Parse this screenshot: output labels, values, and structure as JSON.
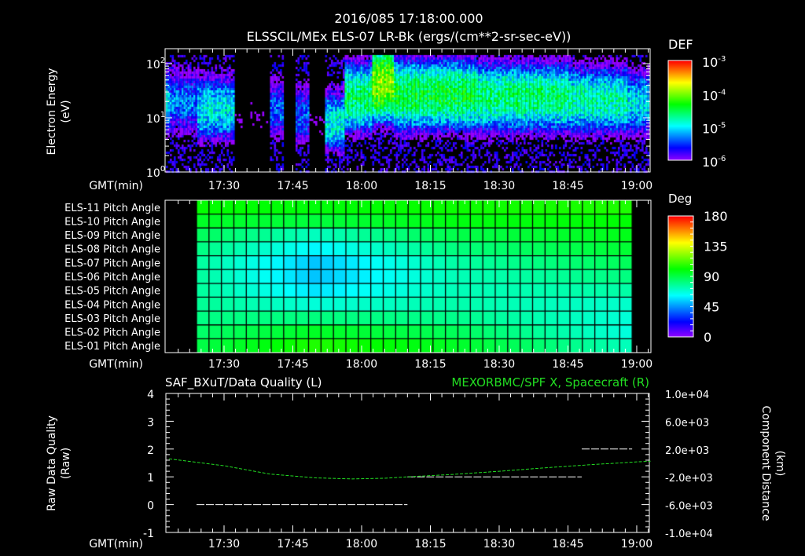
{
  "header": {
    "timestamp": "2016/085 17:18:00.000",
    "title": "ELSSCIL/MEx ELS-07 LR-Bk  (ergs/(cm**2-sr-sec-eV))"
  },
  "time_axis": {
    "label": "GMT(min)",
    "range_min": [
      78,
      123
    ],
    "ticks": [
      {
        "min": 90,
        "label": "17:30"
      },
      {
        "min": 105,
        "label": "17:45"
      },
      {
        "min": 120,
        "label": "18:00"
      },
      {
        "min": 135,
        "label": "18:15"
      },
      {
        "min": 150,
        "label": "18:30"
      },
      {
        "min": 165,
        "label": "18:45"
      },
      {
        "min": 180,
        "label": "19:00"
      }
    ]
  },
  "chart_data": [
    {
      "type": "heatmap",
      "name": "energy-spectrogram",
      "ylabel": "Electron Energy",
      "yunit": "(eV)",
      "yscale": "log",
      "ylim": [
        1,
        186
      ],
      "yticks": [
        {
          "exp": 0,
          "label": "10",
          "sup": "0"
        },
        {
          "exp": 1,
          "label": "10",
          "sup": "1"
        },
        {
          "exp": 2,
          "label": "10",
          "sup": "2"
        }
      ],
      "xlim_min": [
        78,
        183
      ],
      "colorbar": {
        "title": "DEF",
        "log_range": [
          -6,
          -3
        ],
        "ticks": [
          {
            "exp": -3,
            "label": "10",
            "sup": "-3"
          },
          {
            "exp": -4,
            "label": "10",
            "sup": "-4"
          },
          {
            "exp": -5,
            "label": "10",
            "sup": "-5"
          },
          {
            "exp": -6,
            "label": "10",
            "sup": "-6"
          }
        ]
      },
      "segments": [
        {
          "start": 78,
          "end": 84,
          "peak_eV": 20,
          "log_level": -5.3
        },
        {
          "start": 84,
          "end": 92,
          "peak_eV": 15,
          "log_level": -4.95
        },
        {
          "start": 92,
          "end": 100,
          "peak_eV": 10,
          "log_level": -6.6
        },
        {
          "start": 100,
          "end": 103,
          "peak_eV": 15,
          "log_level": -5.4
        },
        {
          "start": 103,
          "end": 105.5,
          "peak_eV": 10,
          "log_level": -6.8
        },
        {
          "start": 105.5,
          "end": 108.5,
          "peak_eV": 12,
          "log_level": -5.4
        },
        {
          "start": 108.5,
          "end": 112,
          "peak_eV": 10,
          "log_level": -6.6
        },
        {
          "start": 112,
          "end": 116,
          "peak_eV": 8,
          "log_level": -4.9
        },
        {
          "start": 116,
          "end": 122,
          "peak_eV": 25,
          "log_level": -4.55
        },
        {
          "start": 122,
          "end": 127,
          "peak_eV": 45,
          "log_level": -3.95
        },
        {
          "start": 127,
          "end": 145,
          "peak_eV": 28,
          "log_level": -4.45
        },
        {
          "start": 145,
          "end": 165,
          "peak_eV": 25,
          "log_level": -4.6
        },
        {
          "start": 165,
          "end": 178,
          "peak_eV": 22,
          "log_level": -4.75
        },
        {
          "start": 178,
          "end": 183,
          "peak_eV": 20,
          "log_level": -5.0
        }
      ]
    },
    {
      "type": "heatmap",
      "name": "pitch-angle-grid",
      "rows": [
        "ELS-11 Pitch Angle",
        "ELS-10 Pitch Angle",
        "ELS-09 Pitch Angle",
        "ELS-08 Pitch Angle",
        "ELS-07 Pitch Angle",
        "ELS-06 Pitch Angle",
        "ELS-05 Pitch Angle",
        "ELS-04 Pitch Angle",
        "ELS-03 Pitch Angle",
        "ELS-02 Pitch Angle",
        "ELS-01 Pitch Angle"
      ],
      "data_range_min": [
        84,
        179
      ],
      "n_columns": 35,
      "keyframes_min": [
        84,
        110,
        140,
        179
      ],
      "angles_deg": [
        [
          102,
          100,
          103,
          106
        ],
        [
          96,
          92,
          99,
          101
        ],
        [
          88,
          72,
          90,
          98
        ],
        [
          82,
          61,
          82,
          94
        ],
        [
          78,
          53,
          76,
          88
        ],
        [
          78,
          53,
          73,
          82
        ],
        [
          78,
          58,
          73,
          76
        ],
        [
          79,
          68,
          75,
          70
        ],
        [
          81,
          82,
          80,
          68
        ],
        [
          85,
          96,
          88,
          67
        ],
        [
          90,
          106,
          96,
          72
        ]
      ],
      "colorbar": {
        "title": "Deg",
        "range": [
          0,
          180
        ],
        "ticks": [
          "180",
          "135",
          "90",
          "45",
          "0"
        ]
      }
    },
    {
      "type": "line",
      "name": "quality-and-position",
      "left_title": "SAF_BXuT/Data Quality (L)",
      "right_title": "MEXORBMC/SPF X, Spacecraft (R)",
      "ylabel_left": "Raw Data Quality",
      "yunit_left": "(Raw)",
      "ylabel_right": "Component Distance",
      "yunit_right": "(km)",
      "ylim_left": [
        -1,
        4
      ],
      "yticks_left": [
        "4",
        "3",
        "2",
        "1",
        "0",
        "-1"
      ],
      "ylim_right": [
        -10000,
        10000
      ],
      "yticks_right": [
        "1.0e+04",
        "6.0e+03",
        "2.0e+03",
        "-2.0e+03",
        "-6.0e+03",
        "-1.0e+04"
      ],
      "data_quality": [
        {
          "start": 84,
          "end": 130,
          "value": 0
        },
        {
          "start": 130,
          "end": 168,
          "value": 1
        },
        {
          "start": 168,
          "end": 179,
          "value": 2
        }
      ],
      "spacecraft_x": {
        "color": "#22dd22",
        "t": [
          78,
          90,
          100,
          110,
          118,
          125,
          130,
          140,
          150,
          160,
          170,
          180,
          183
        ],
        "km": [
          600,
          -400,
          -1600,
          -2150,
          -2300,
          -2200,
          -2000,
          -1650,
          -1200,
          -700,
          -250,
          150,
          250
        ]
      }
    }
  ]
}
